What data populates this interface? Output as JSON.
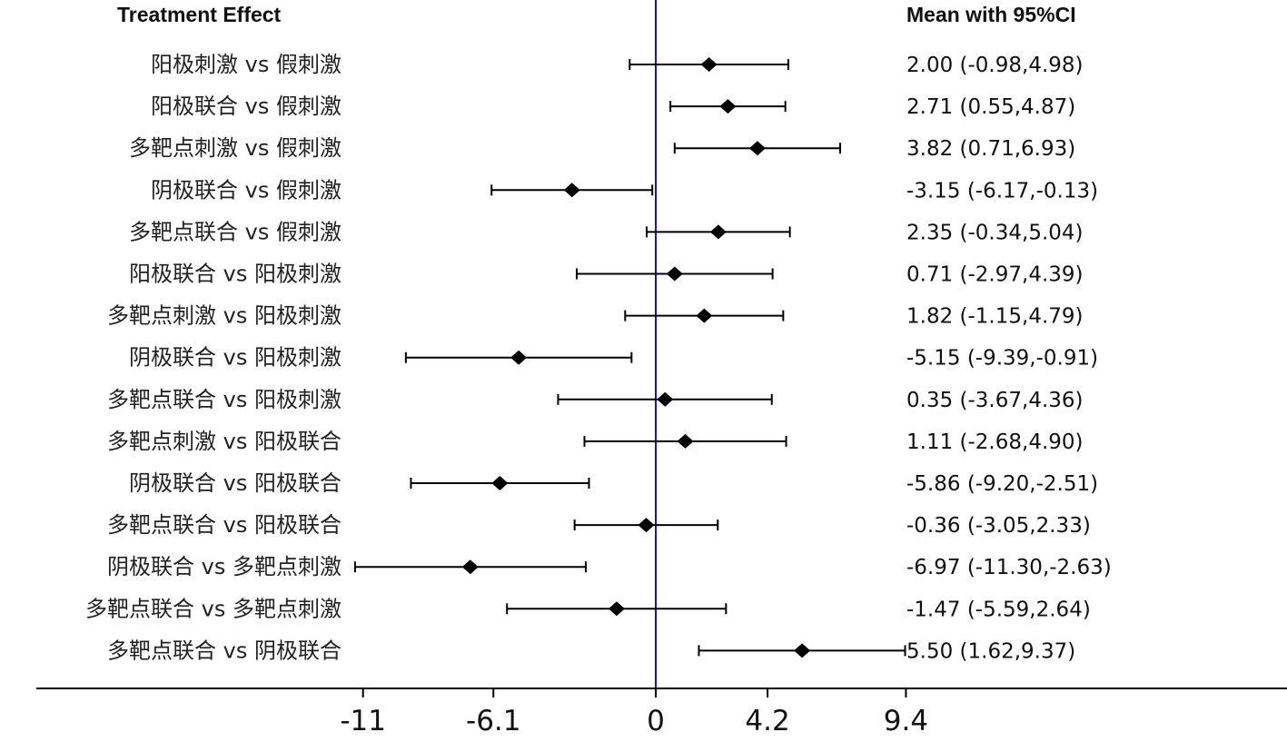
{
  "chart_data": {
    "type": "forest",
    "headers": {
      "left": "Treatment Effect",
      "right": "Mean with 95%CI"
    },
    "xlim": [
      -11,
      9.4
    ],
    "xticks": [
      -11,
      -6.1,
      0,
      4.2,
      9.4
    ],
    "xtick_labels": [
      "-11",
      "-6.1",
      "0",
      "4.2",
      "9.4"
    ],
    "reference_line": 0,
    "colors": {
      "reference_line": "#1a1aa6",
      "marks": "#000000"
    },
    "rows": [
      {
        "label": "阳极刺激 vs 假刺激",
        "mean": 2.0,
        "lower": -0.98,
        "upper": 4.98,
        "ci_text": "2.00 (-0.98,4.98)"
      },
      {
        "label": "阳极联合 vs 假刺激",
        "mean": 2.71,
        "lower": 0.55,
        "upper": 4.87,
        "ci_text": "2.71 (0.55,4.87)"
      },
      {
        "label": "多靶点刺激 vs 假刺激",
        "mean": 3.82,
        "lower": 0.71,
        "upper": 6.93,
        "ci_text": "3.82 (0.71,6.93)"
      },
      {
        "label": "阴极联合 vs 假刺激",
        "mean": -3.15,
        "lower": -6.17,
        "upper": -0.13,
        "ci_text": "-3.15 (-6.17,-0.13)"
      },
      {
        "label": "多靶点联合 vs 假刺激",
        "mean": 2.35,
        "lower": -0.34,
        "upper": 5.04,
        "ci_text": "2.35 (-0.34,5.04)"
      },
      {
        "label": "阳极联合 vs 阳极刺激",
        "mean": 0.71,
        "lower": -2.97,
        "upper": 4.39,
        "ci_text": "0.71 (-2.97,4.39)"
      },
      {
        "label": "多靶点刺激 vs 阳极刺激",
        "mean": 1.82,
        "lower": -1.15,
        "upper": 4.79,
        "ci_text": "1.82 (-1.15,4.79)"
      },
      {
        "label": "阴极联合 vs 阳极刺激",
        "mean": -5.15,
        "lower": -9.39,
        "upper": -0.91,
        "ci_text": "-5.15 (-9.39,-0.91)"
      },
      {
        "label": "多靶点联合 vs 阳极刺激",
        "mean": 0.35,
        "lower": -3.67,
        "upper": 4.36,
        "ci_text": "0.35 (-3.67,4.36)"
      },
      {
        "label": "多靶点刺激 vs 阳极联合",
        "mean": 1.11,
        "lower": -2.68,
        "upper": 4.9,
        "ci_text": "1.11 (-2.68,4.90)"
      },
      {
        "label": "阴极联合 vs 阳极联合",
        "mean": -5.86,
        "lower": -9.2,
        "upper": -2.51,
        "ci_text": "-5.86 (-9.20,-2.51)"
      },
      {
        "label": "多靶点联合 vs 阳极联合",
        "mean": -0.36,
        "lower": -3.05,
        "upper": 2.33,
        "ci_text": "-0.36 (-3.05,2.33)"
      },
      {
        "label": "阴极联合 vs 多靶点刺激",
        "mean": -6.97,
        "lower": -11.3,
        "upper": -2.63,
        "ci_text": "-6.97 (-11.30,-2.63)"
      },
      {
        "label": "多靶点联合 vs 多靶点刺激",
        "mean": -1.47,
        "lower": -5.59,
        "upper": 2.64,
        "ci_text": "-1.47 (-5.59,2.64)"
      },
      {
        "label": "多靶点联合 vs 阴极联合",
        "mean": 5.5,
        "lower": 1.62,
        "upper": 9.37,
        "ci_text": "5.50 (1.62,9.37)"
      }
    ]
  }
}
